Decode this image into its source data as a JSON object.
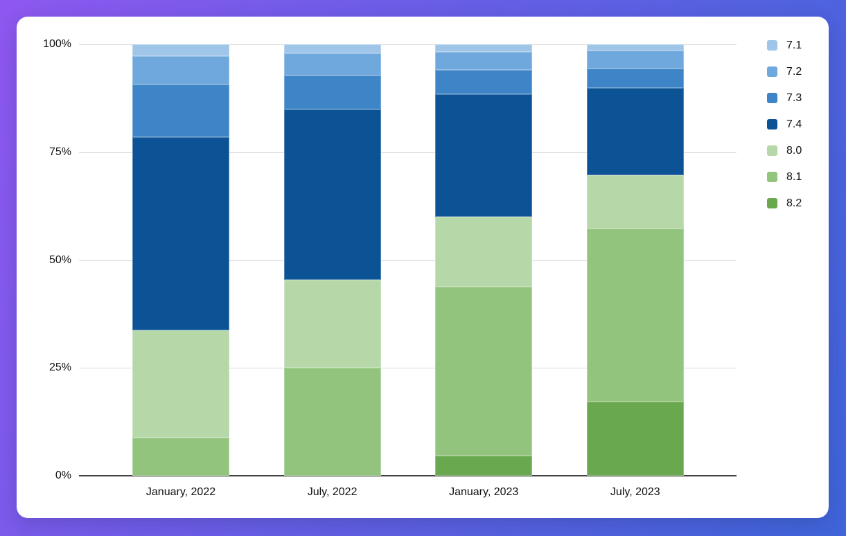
{
  "frame": {
    "gradient_start_color": "#8e58f0",
    "gradient_end_color": "#3f65da",
    "card_color": "#ffffff",
    "gridline_color": "#d9d9d9",
    "axis_color": "#424242",
    "text_color": "#111111"
  },
  "chart_data": {
    "type": "bar",
    "variant": "stacked-100-percent",
    "title": "",
    "xlabel": "",
    "ylabel": "",
    "grid": true,
    "legend_position": "top-right",
    "categories": [
      "January, 2022",
      "July, 2022",
      "January, 2023",
      "July, 2023"
    ],
    "series": [
      {
        "name": "7.1",
        "color": "#9fc5e8",
        "values": [
          2.7,
          2.1,
          1.8,
          1.4
        ]
      },
      {
        "name": "7.2",
        "color": "#6fa8dc",
        "values": [
          6.6,
          5.1,
          4.2,
          4.2
        ]
      },
      {
        "name": "7.3",
        "color": "#3d85c6",
        "values": [
          12.2,
          7.9,
          5.5,
          4.5
        ]
      },
      {
        "name": "7.4",
        "color": "#0b5394",
        "values": [
          44.8,
          39.4,
          28.4,
          20.2
        ]
      },
      {
        "name": "8.0",
        "color": "#b6d7a8",
        "values": [
          24.9,
          20.5,
          16.2,
          12.4
        ]
      },
      {
        "name": "8.1",
        "color": "#93c47d",
        "values": [
          8.8,
          25.0,
          39.2,
          40.1
        ]
      },
      {
        "name": "8.2",
        "color": "#6aa84f",
        "values": [
          0,
          0,
          4.7,
          17.2
        ]
      }
    ],
    "y_axis": {
      "min": 0,
      "max": 100,
      "tick_labels": [
        "100%",
        "75%",
        "50%",
        "25%",
        "0%"
      ]
    },
    "legend_entries": [
      "7.1",
      "7.2",
      "7.3",
      "7.4",
      "8.0",
      "8.1",
      "8.2"
    ]
  }
}
